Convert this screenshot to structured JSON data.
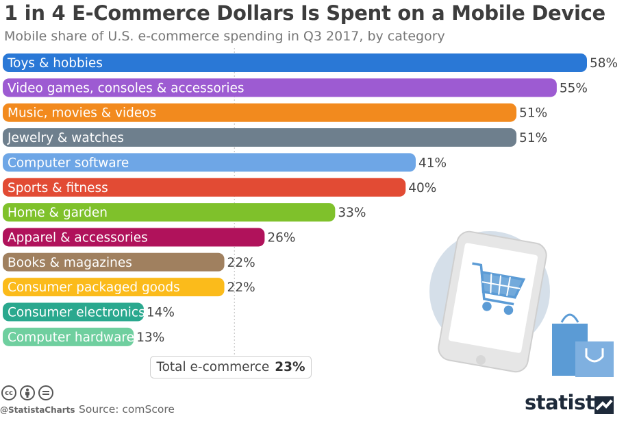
{
  "header": {
    "title": "1 in 4 E-Commerce Dollars Is Spent on a Mobile Device",
    "subtitle": "Mobile share of U.S. e-commerce spending in Q3 2017, by category"
  },
  "chart_data": {
    "type": "bar",
    "orientation": "horizontal",
    "title": "1 in 4 E-Commerce Dollars Is Spent on a Mobile Device",
    "subtitle": "Mobile share of U.S. e-commerce spending in Q3 2017, by category",
    "categories": [
      "Toys & hobbies",
      "Video games, consoles & accessories",
      "Music, movies & videos",
      "Jewelry & watches",
      "Computer software",
      "Sports & fitness",
      "Home & garden",
      "Apparel & accessories",
      "Books & magazines",
      "Consumer packaged goods",
      "Consumer electronics",
      "Computer hardware"
    ],
    "values": [
      58,
      55,
      51,
      51,
      41,
      40,
      33,
      26,
      22,
      22,
      14,
      13
    ],
    "value_labels": [
      "58%",
      "55%",
      "51%",
      "51%",
      "41%",
      "40%",
      "33%",
      "26%",
      "22%",
      "22%",
      "14%",
      "13%"
    ],
    "colors": [
      "#2a78d6",
      "#9d5bd2",
      "#f28a1e",
      "#6e7f8d",
      "#6ea6e6",
      "#e24b34",
      "#7fc12b",
      "#b0125b",
      "#a0805f",
      "#fbbb1b",
      "#2aa88e",
      "#6fcf9f"
    ],
    "reference_line": {
      "value": 23
    },
    "xlim": [
      0,
      58
    ],
    "grid": false,
    "legend": "none"
  },
  "total": {
    "label": "Total e-commerce",
    "value": "23%"
  },
  "footer": {
    "handle": "@StatistaCharts",
    "source": "Source: comScore",
    "brand": "statista",
    "license_icons": [
      "cc-icon",
      "by-icon",
      "nd-icon"
    ]
  },
  "illustration": {
    "icons": [
      "smartphone-icon",
      "shopping-cart-icon",
      "shopping-bags-icon"
    ],
    "circle_color": "#d5dfe9",
    "bag_color": "#5b9bd5"
  }
}
